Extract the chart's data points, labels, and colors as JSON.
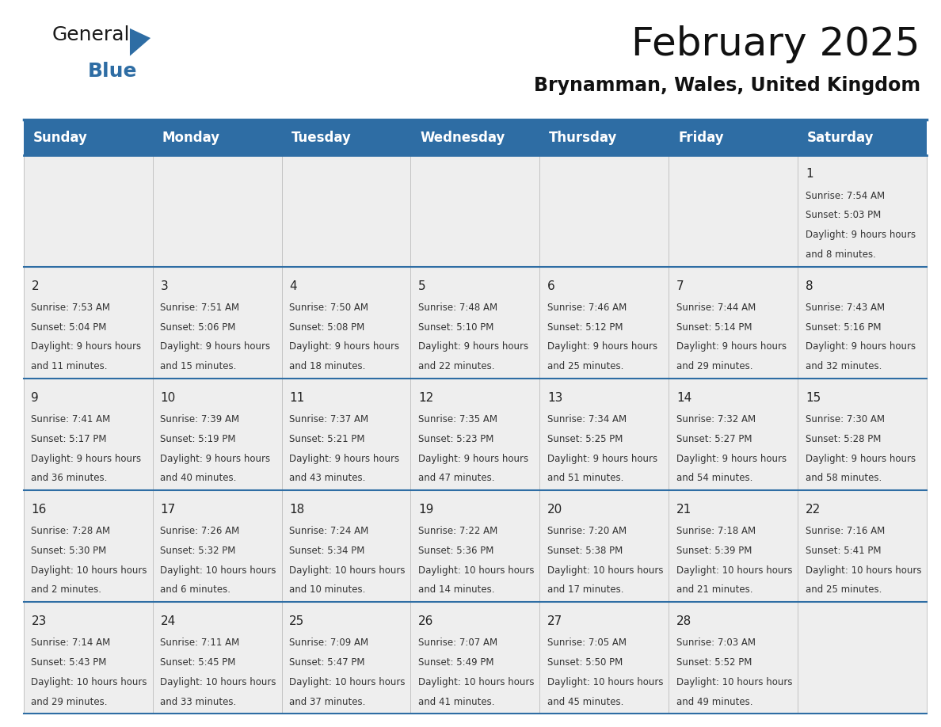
{
  "title": "February 2025",
  "subtitle": "Brynamman, Wales, United Kingdom",
  "header_bg": "#2e6da4",
  "header_text": "#ffffff",
  "cell_bg": "#eeeeee",
  "grid_line_color": "#2e6da4",
  "cell_line_color": "#cccccc",
  "day_names": [
    "Sunday",
    "Monday",
    "Tuesday",
    "Wednesday",
    "Thursday",
    "Friday",
    "Saturday"
  ],
  "days": [
    {
      "day": 1,
      "col": 6,
      "row": 0,
      "sunrise": "7:54 AM",
      "sunset": "5:03 PM",
      "daylight": "9 hours and 8 minutes."
    },
    {
      "day": 2,
      "col": 0,
      "row": 1,
      "sunrise": "7:53 AM",
      "sunset": "5:04 PM",
      "daylight": "9 hours and 11 minutes."
    },
    {
      "day": 3,
      "col": 1,
      "row": 1,
      "sunrise": "7:51 AM",
      "sunset": "5:06 PM",
      "daylight": "9 hours and 15 minutes."
    },
    {
      "day": 4,
      "col": 2,
      "row": 1,
      "sunrise": "7:50 AM",
      "sunset": "5:08 PM",
      "daylight": "9 hours and 18 minutes."
    },
    {
      "day": 5,
      "col": 3,
      "row": 1,
      "sunrise": "7:48 AM",
      "sunset": "5:10 PM",
      "daylight": "9 hours and 22 minutes."
    },
    {
      "day": 6,
      "col": 4,
      "row": 1,
      "sunrise": "7:46 AM",
      "sunset": "5:12 PM",
      "daylight": "9 hours and 25 minutes."
    },
    {
      "day": 7,
      "col": 5,
      "row": 1,
      "sunrise": "7:44 AM",
      "sunset": "5:14 PM",
      "daylight": "9 hours and 29 minutes."
    },
    {
      "day": 8,
      "col": 6,
      "row": 1,
      "sunrise": "7:43 AM",
      "sunset": "5:16 PM",
      "daylight": "9 hours and 32 minutes."
    },
    {
      "day": 9,
      "col": 0,
      "row": 2,
      "sunrise": "7:41 AM",
      "sunset": "5:17 PM",
      "daylight": "9 hours and 36 minutes."
    },
    {
      "day": 10,
      "col": 1,
      "row": 2,
      "sunrise": "7:39 AM",
      "sunset": "5:19 PM",
      "daylight": "9 hours and 40 minutes."
    },
    {
      "day": 11,
      "col": 2,
      "row": 2,
      "sunrise": "7:37 AM",
      "sunset": "5:21 PM",
      "daylight": "9 hours and 43 minutes."
    },
    {
      "day": 12,
      "col": 3,
      "row": 2,
      "sunrise": "7:35 AM",
      "sunset": "5:23 PM",
      "daylight": "9 hours and 47 minutes."
    },
    {
      "day": 13,
      "col": 4,
      "row": 2,
      "sunrise": "7:34 AM",
      "sunset": "5:25 PM",
      "daylight": "9 hours and 51 minutes."
    },
    {
      "day": 14,
      "col": 5,
      "row": 2,
      "sunrise": "7:32 AM",
      "sunset": "5:27 PM",
      "daylight": "9 hours and 54 minutes."
    },
    {
      "day": 15,
      "col": 6,
      "row": 2,
      "sunrise": "7:30 AM",
      "sunset": "5:28 PM",
      "daylight": "9 hours and 58 minutes."
    },
    {
      "day": 16,
      "col": 0,
      "row": 3,
      "sunrise": "7:28 AM",
      "sunset": "5:30 PM",
      "daylight": "10 hours and 2 minutes."
    },
    {
      "day": 17,
      "col": 1,
      "row": 3,
      "sunrise": "7:26 AM",
      "sunset": "5:32 PM",
      "daylight": "10 hours and 6 minutes."
    },
    {
      "day": 18,
      "col": 2,
      "row": 3,
      "sunrise": "7:24 AM",
      "sunset": "5:34 PM",
      "daylight": "10 hours and 10 minutes."
    },
    {
      "day": 19,
      "col": 3,
      "row": 3,
      "sunrise": "7:22 AM",
      "sunset": "5:36 PM",
      "daylight": "10 hours and 14 minutes."
    },
    {
      "day": 20,
      "col": 4,
      "row": 3,
      "sunrise": "7:20 AM",
      "sunset": "5:38 PM",
      "daylight": "10 hours and 17 minutes."
    },
    {
      "day": 21,
      "col": 5,
      "row": 3,
      "sunrise": "7:18 AM",
      "sunset": "5:39 PM",
      "daylight": "10 hours and 21 minutes."
    },
    {
      "day": 22,
      "col": 6,
      "row": 3,
      "sunrise": "7:16 AM",
      "sunset": "5:41 PM",
      "daylight": "10 hours and 25 minutes."
    },
    {
      "day": 23,
      "col": 0,
      "row": 4,
      "sunrise": "7:14 AM",
      "sunset": "5:43 PM",
      "daylight": "10 hours and 29 minutes."
    },
    {
      "day": 24,
      "col": 1,
      "row": 4,
      "sunrise": "7:11 AM",
      "sunset": "5:45 PM",
      "daylight": "10 hours and 33 minutes."
    },
    {
      "day": 25,
      "col": 2,
      "row": 4,
      "sunrise": "7:09 AM",
      "sunset": "5:47 PM",
      "daylight": "10 hours and 37 minutes."
    },
    {
      "day": 26,
      "col": 3,
      "row": 4,
      "sunrise": "7:07 AM",
      "sunset": "5:49 PM",
      "daylight": "10 hours and 41 minutes."
    },
    {
      "day": 27,
      "col": 4,
      "row": 4,
      "sunrise": "7:05 AM",
      "sunset": "5:50 PM",
      "daylight": "10 hours and 45 minutes."
    },
    {
      "day": 28,
      "col": 5,
      "row": 4,
      "sunrise": "7:03 AM",
      "sunset": "5:52 PM",
      "daylight": "10 hours and 49 minutes."
    }
  ],
  "num_rows": 5,
  "num_cols": 7,
  "logo_general_color": "#1a1a1a",
  "logo_blue_color": "#2e6da4",
  "title_fontsize": 36,
  "subtitle_fontsize": 17,
  "header_fontsize": 12,
  "day_num_fontsize": 11,
  "cell_text_fontsize": 8.5
}
